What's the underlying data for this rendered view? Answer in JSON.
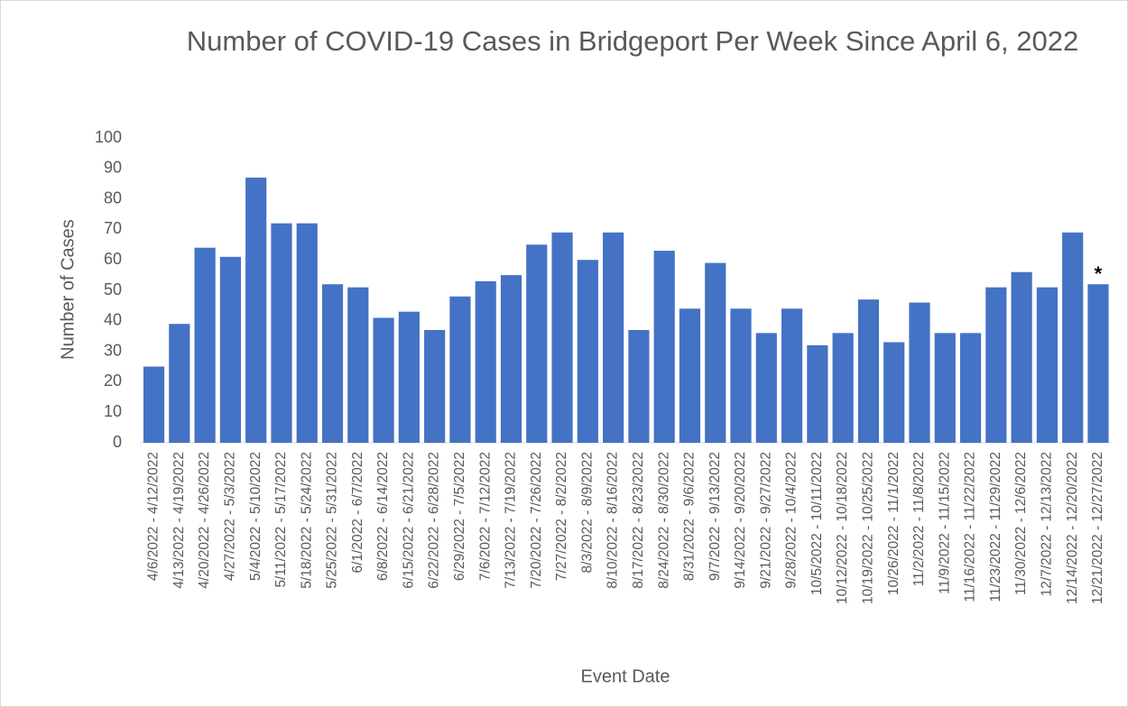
{
  "chart_data": {
    "type": "bar",
    "title": "Number of COVID-19 Cases in Bridgeport Per Week Since April 6, 2022",
    "x_label": "Event Date",
    "y_label": "Number of Cases",
    "annotation": "*",
    "categories": [
      "4/6/2022 - 4/12/2022",
      "4/13/2022 - 4/19/2022",
      "4/20/2022 - 4/26/2022",
      "4/27/2022 - 5/3/2022",
      "5/4/2022 - 5/10/2022",
      "5/11/2022 - 5/17/2022",
      "5/18/2022 - 5/24/2022",
      "5/25/2022 - 5/31/2022",
      "6/1/2022 - 6/7/2022",
      "6/8/2022 - 6/14/2022",
      "6/15/2022 - 6/21/2022",
      "6/22/2022 - 6/28/2022",
      "6/29/2022 - 7/5/2022",
      "7/6/2022 - 7/12/2022",
      "7/13/2022 - 7/19/2022",
      "7/20/2022 - 7/26/2022",
      "7/27/2022 - 8/2/2022",
      "8/3/2022 - 8/9/2022",
      "8/10/2022 - 8/16/2022",
      "8/17/2022 - 8/23/2022",
      "8/24/2022 - 8/30/2022",
      "8/31/2022 - 9/6/2022",
      "9/7/2022 - 9/13/2022",
      "9/14/2022 - 9/20/2022",
      "9/21/2022 - 9/27/2022",
      "9/28/2022 - 10/4/2022",
      "10/5/2022 - 10/11/2022",
      "10/12/2022 - 10/18/2022",
      "10/19/2022 - 10/25/2022",
      "10/26/2022 - 11/1/2022",
      "11/2/2022 - 11/8/2022",
      "11/9/2022 - 11/15/2022",
      "11/16/2022 - 11/22/2022",
      "11/23/2022 - 11/29/2022",
      "11/30/2022 - 12/6/2022",
      "12/7/2022 - 12/13/2022",
      "12/14/2022 - 12/20/2022",
      "12/21/2022 - 12/27/2022"
    ],
    "values": [
      25,
      39,
      64,
      61,
      87,
      72,
      72,
      52,
      51,
      41,
      43,
      37,
      48,
      53,
      55,
      65,
      69,
      60,
      69,
      37,
      63,
      44,
      59,
      44,
      36,
      44,
      32,
      36,
      47,
      33,
      46,
      36,
      36,
      51,
      56,
      51,
      69,
      52
    ],
    "color": "#4472c4",
    "ylim": [
      0,
      100
    ],
    "yticks": [
      0,
      10,
      20,
      30,
      40,
      50,
      60,
      70,
      80,
      90,
      100
    ],
    "grid": false
  }
}
